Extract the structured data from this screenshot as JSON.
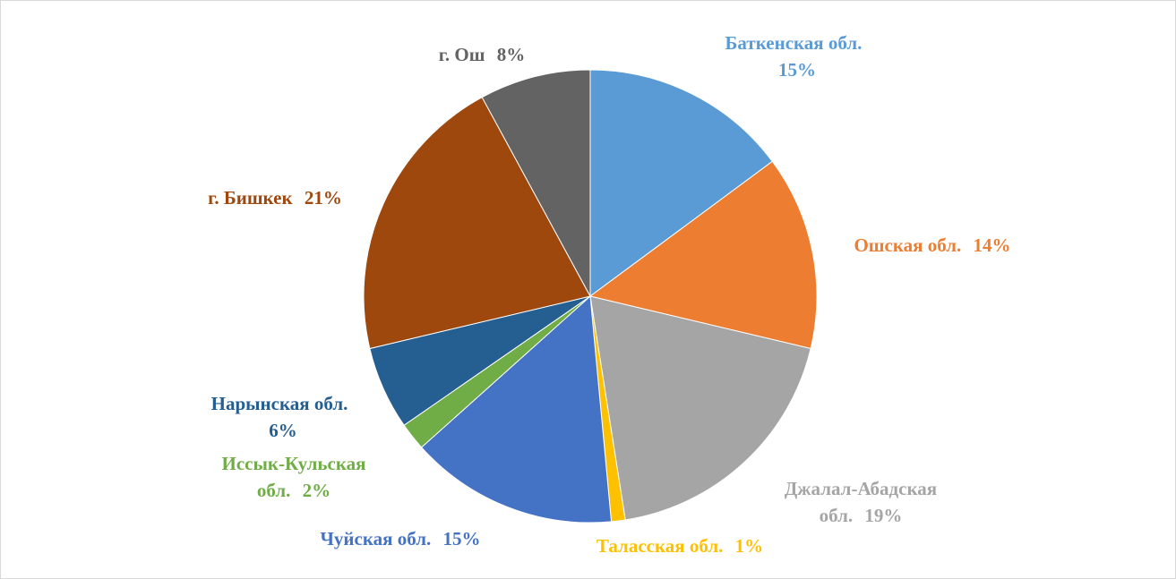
{
  "chart_data": {
    "type": "pie",
    "categories": [
      "Баткенская обл.",
      "Ошская обл.",
      "Джалал-Абадская обл.",
      "Таласская обл.",
      "Чуйская обл.",
      "Иссык-Кульская обл.",
      "Нарынская обл.",
      "г. Бишкек",
      "г. Ош"
    ],
    "values": [
      15,
      14,
      19,
      1,
      15,
      2,
      6,
      21,
      8
    ],
    "value_labels": [
      "15%",
      "14%",
      "19%",
      "1%",
      "15%",
      "2%",
      "6%",
      "21%",
      "8%"
    ],
    "colors": [
      "#5b9bd5",
      "#ed7d31",
      "#a5a5a5",
      "#ffc000",
      "#4472c4",
      "#70ad47",
      "#255e91",
      "#9e480e",
      "#636363"
    ]
  }
}
